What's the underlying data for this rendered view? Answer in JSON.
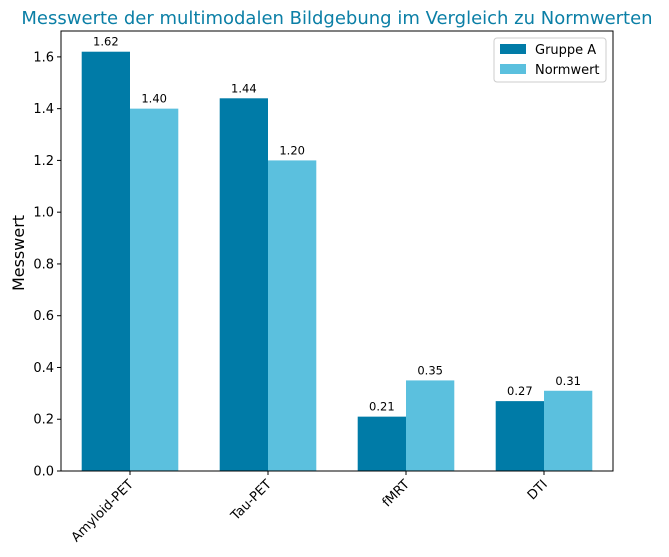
{
  "chart_data": {
    "type": "bar",
    "title": "Messwerte der multimodalen Bildgebung im Vergleich zu Normwerten",
    "xlabel": "",
    "ylabel": "Messwert",
    "categories": [
      "Amyloid-PET",
      "Tau-PET",
      "fMRT",
      "DTI"
    ],
    "series": [
      {
        "name": "Gruppe A",
        "color": "#007ba7",
        "values": [
          1.62,
          1.44,
          0.21,
          0.27
        ]
      },
      {
        "name": "Normwert",
        "color": "#5bc0de",
        "values": [
          1.4,
          1.2,
          0.35,
          0.31
        ]
      }
    ],
    "ylim": [
      0,
      1.7
    ],
    "yticks": [
      "0.0",
      "0.2",
      "0.4",
      "0.6",
      "0.8",
      "1.0",
      "1.2",
      "1.4",
      "1.6"
    ],
    "grid": false,
    "legend_position": "top-right",
    "title_color": "#0b7fa6"
  }
}
